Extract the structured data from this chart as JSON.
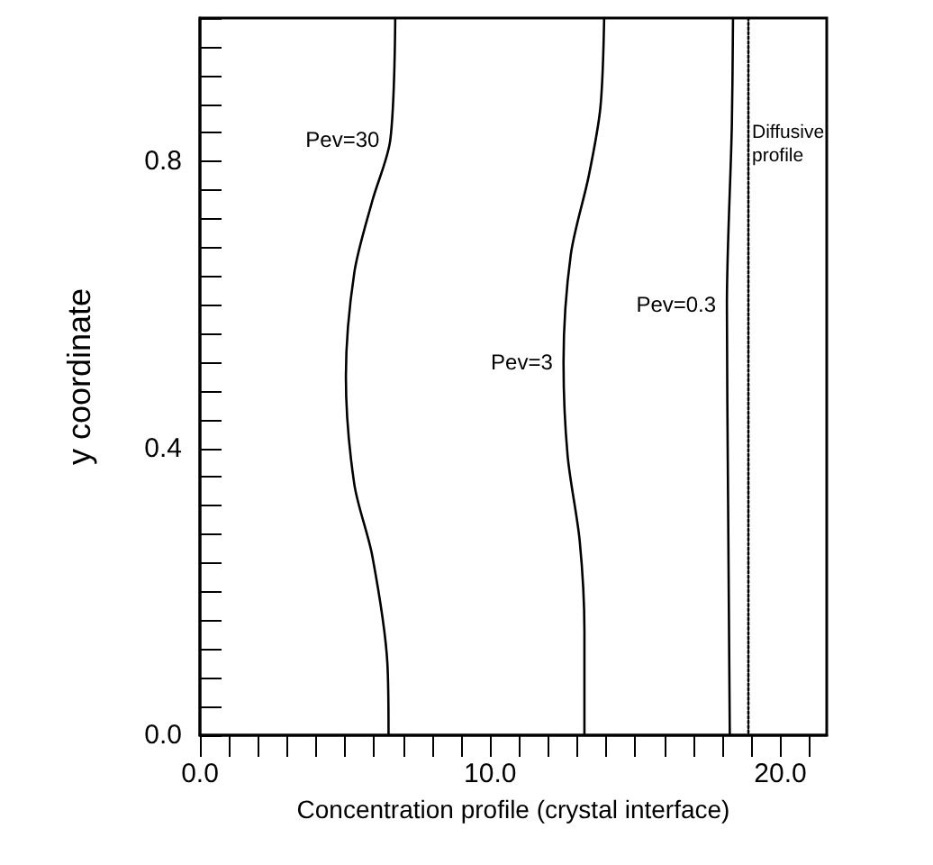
{
  "chart_data": {
    "type": "line",
    "xlabel": "Concentration profile (crystal interface)",
    "ylabel": "y coordinate",
    "xlim": [
      0,
      21.6
    ],
    "ylim": [
      0,
      1
    ],
    "xticks": [
      {
        "value": 0,
        "label": "0.0"
      },
      {
        "value": 10,
        "label": "10.0"
      },
      {
        "value": 20,
        "label": "20.0"
      }
    ],
    "yticks": [
      {
        "value": 0,
        "label": "0.0"
      },
      {
        "value": 0.4,
        "label": "0.4"
      },
      {
        "value": 0.8,
        "label": "0.8"
      }
    ],
    "grid": false,
    "legend": false,
    "marker": "none",
    "series": [
      {
        "name": "Pev=30",
        "color": "#000000",
        "line_style": "solid",
        "x": [
          6.73,
          6.56,
          5.94,
          5.32,
          5.03,
          5.32,
          5.94,
          6.46,
          6.5
        ],
        "values": [
          1.0,
          0.83,
          0.745,
          0.645,
          0.5,
          0.35,
          0.25,
          0.1,
          0.0
        ]
      },
      {
        "name": "Pev=3",
        "color": "#000000",
        "line_style": "solid",
        "x": [
          13.93,
          13.8,
          13.4,
          12.78,
          12.53,
          12.67,
          13.09,
          13.25,
          13.25
        ],
        "values": [
          1.0,
          0.875,
          0.78,
          0.67,
          0.52,
          0.39,
          0.27,
          0.145,
          0.0
        ]
      },
      {
        "name": "Pev=0.3",
        "color": "#000000",
        "line_style": "solid",
        "x": [
          18.37,
          18.33,
          18.16,
          18.2,
          18.26
        ],
        "values": [
          1.0,
          0.85,
          0.6,
          0.33,
          0.0
        ]
      },
      {
        "name": "Diffusive profile",
        "color": "#000000",
        "line_style": "dotted",
        "x": [
          18.9,
          18.9
        ],
        "values": [
          1.0,
          0.0
        ]
      }
    ]
  }
}
